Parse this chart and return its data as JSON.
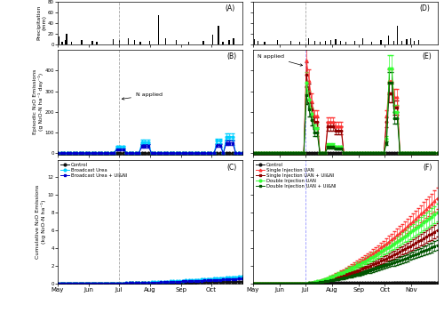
{
  "panel_labels": [
    "(A)",
    "(B)",
    "(C)",
    "(D)",
    "(E)",
    "(F)"
  ],
  "months_left": [
    "May",
    "Jun",
    "Jul",
    "Aug",
    "Sep",
    "Oct"
  ],
  "months_right": [
    "May",
    "Jun",
    "Jul",
    "Aug",
    "Sep",
    "Oct",
    "Nov"
  ],
  "colors": {
    "control": "#111111",
    "broadcast_urea": "#00CFFF",
    "broadcast_urea_uini": "#0000CC",
    "single_injection_uan": "#FF3333",
    "single_injection_uan_uini": "#8B0000",
    "double_injection_uan": "#33FF33",
    "double_injection_uan_uini": "#005500"
  },
  "background": "#ffffff"
}
